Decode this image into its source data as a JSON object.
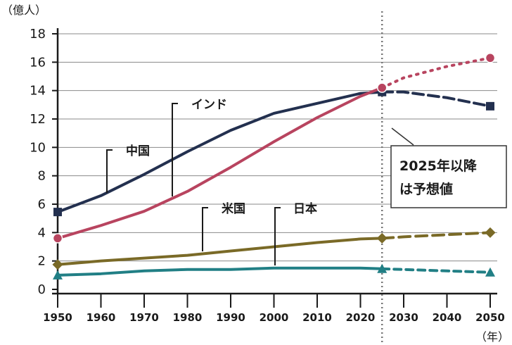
{
  "chart_data": {
    "type": "line",
    "y_unit": "（億人）",
    "x_unit": "（年）",
    "ylim": [
      0,
      18
    ],
    "xlim": [
      1950,
      2050
    ],
    "y_ticks": [
      "0",
      "2",
      "4",
      "6",
      "8",
      "10",
      "12",
      "14",
      "16",
      "18"
    ],
    "x_ticks": [
      "1950",
      "1960",
      "1970",
      "1980",
      "1990",
      "2000",
      "2010",
      "2020",
      "2030",
      "2040",
      "2050"
    ],
    "grid": "horizontal",
    "projection_start_year": 2025,
    "annotation": [
      "2025年以降",
      "は予想値"
    ],
    "colors": {
      "china": "#23304f",
      "india": "#b8445f",
      "usa": "#7a6a27",
      "japan": "#217f85",
      "divider": "#777777"
    },
    "series": [
      {
        "name": "中国",
        "color": "#23304f",
        "marker": "square",
        "actual": {
          "x": [
            1950,
            1960,
            1970,
            1980,
            1990,
            2000,
            2010,
            2020,
            2025
          ],
          "y": [
            5.45,
            6.6,
            8.1,
            9.7,
            11.2,
            12.4,
            13.1,
            13.8,
            13.9
          ]
        },
        "projected": {
          "x": [
            2025,
            2030,
            2040,
            2050
          ],
          "y": [
            13.9,
            13.9,
            13.5,
            12.9
          ]
        }
      },
      {
        "name": "インド",
        "color": "#b8445f",
        "marker": "circle",
        "actual": {
          "x": [
            1950,
            1960,
            1970,
            1980,
            1990,
            2000,
            2010,
            2020,
            2025
          ],
          "y": [
            3.6,
            4.5,
            5.5,
            6.9,
            8.6,
            10.4,
            12.1,
            13.6,
            14.2
          ]
        },
        "projected": {
          "x": [
            2025,
            2030,
            2040,
            2050
          ],
          "y": [
            14.2,
            14.9,
            15.7,
            16.3
          ]
        }
      },
      {
        "name": "米国",
        "color": "#7a6a27",
        "marker": "diamond",
        "actual": {
          "x": [
            1950,
            1960,
            1970,
            1980,
            1990,
            2000,
            2010,
            2020,
            2025
          ],
          "y": [
            1.75,
            2.0,
            2.2,
            2.4,
            2.7,
            3.0,
            3.3,
            3.55,
            3.6
          ]
        },
        "projected": {
          "x": [
            2025,
            2030,
            2040,
            2050
          ],
          "y": [
            3.6,
            3.7,
            3.85,
            4.0
          ]
        }
      },
      {
        "name": "日本",
        "color": "#217f85",
        "marker": "triangle",
        "actual": {
          "x": [
            1950,
            1960,
            1970,
            1980,
            1990,
            2000,
            2010,
            2020,
            2025
          ],
          "y": [
            1.0,
            1.1,
            1.3,
            1.4,
            1.4,
            1.5,
            1.5,
            1.5,
            1.45
          ]
        },
        "projected": {
          "x": [
            2025,
            2030,
            2040,
            2050
          ],
          "y": [
            1.45,
            1.4,
            1.3,
            1.2
          ]
        }
      }
    ]
  }
}
